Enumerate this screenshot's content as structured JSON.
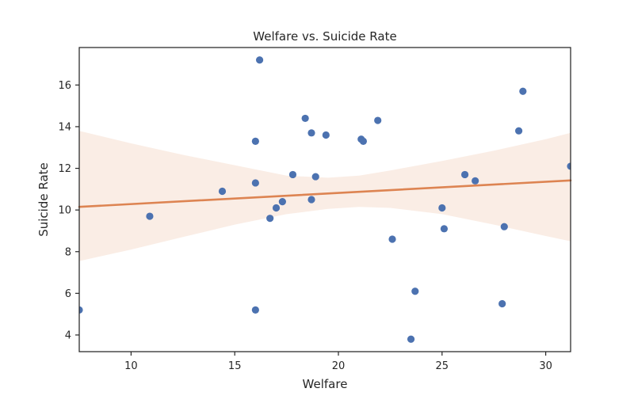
{
  "chart_data": {
    "type": "scatter",
    "title": "Welfare vs. Suicide Rate",
    "xlabel": "Welfare",
    "ylabel": "Suicide Rate",
    "xlim": [
      7.5,
      31.2
    ],
    "ylim": [
      3.2,
      17.8
    ],
    "xticks": [
      10,
      15,
      20,
      25,
      30
    ],
    "yticks": [
      4,
      6,
      8,
      10,
      12,
      14,
      16
    ],
    "grid": false,
    "colors": {
      "points": "#4c72b0",
      "regression_line": "#dd8452",
      "confidence_band": "#dd8452",
      "axes": "#262626"
    },
    "points": [
      {
        "x": 7.5,
        "y": 5.2
      },
      {
        "x": 10.9,
        "y": 9.7
      },
      {
        "x": 14.4,
        "y": 10.9
      },
      {
        "x": 16.0,
        "y": 13.3
      },
      {
        "x": 16.0,
        "y": 11.3
      },
      {
        "x": 16.0,
        "y": 5.2
      },
      {
        "x": 16.2,
        "y": 17.2
      },
      {
        "x": 16.7,
        "y": 9.6
      },
      {
        "x": 17.0,
        "y": 10.1
      },
      {
        "x": 17.3,
        "y": 10.4
      },
      {
        "x": 17.8,
        "y": 11.7
      },
      {
        "x": 18.4,
        "y": 14.4
      },
      {
        "x": 18.7,
        "y": 13.7
      },
      {
        "x": 18.7,
        "y": 10.5
      },
      {
        "x": 18.9,
        "y": 11.6
      },
      {
        "x": 19.4,
        "y": 13.6
      },
      {
        "x": 21.1,
        "y": 13.4
      },
      {
        "x": 21.2,
        "y": 13.3
      },
      {
        "x": 21.9,
        "y": 14.3
      },
      {
        "x": 22.6,
        "y": 8.6
      },
      {
        "x": 23.5,
        "y": 3.8
      },
      {
        "x": 23.7,
        "y": 6.1
      },
      {
        "x": 25.0,
        "y": 10.1
      },
      {
        "x": 25.1,
        "y": 9.1
      },
      {
        "x": 26.1,
        "y": 11.7
      },
      {
        "x": 26.6,
        "y": 11.4
      },
      {
        "x": 27.9,
        "y": 5.5
      },
      {
        "x": 28.0,
        "y": 9.2
      },
      {
        "x": 28.7,
        "y": 13.8
      },
      {
        "x": 28.9,
        "y": 15.7
      },
      {
        "x": 31.2,
        "y": 12.1
      }
    ],
    "regression": {
      "x": [
        7.5,
        31.2
      ],
      "y": [
        10.15,
        11.42
      ]
    },
    "confidence_band": {
      "x": [
        7.5,
        10,
        12.5,
        15,
        17.5,
        19.5,
        21,
        22.5,
        25,
        27.5,
        30,
        31.2
      ],
      "lower": [
        7.55,
        8.1,
        8.7,
        9.3,
        9.8,
        10.05,
        10.15,
        10.1,
        9.8,
        9.3,
        8.75,
        8.5
      ],
      "upper": [
        13.8,
        13.2,
        12.65,
        12.15,
        11.65,
        11.55,
        11.65,
        11.9,
        12.35,
        12.85,
        13.4,
        13.7
      ]
    }
  }
}
